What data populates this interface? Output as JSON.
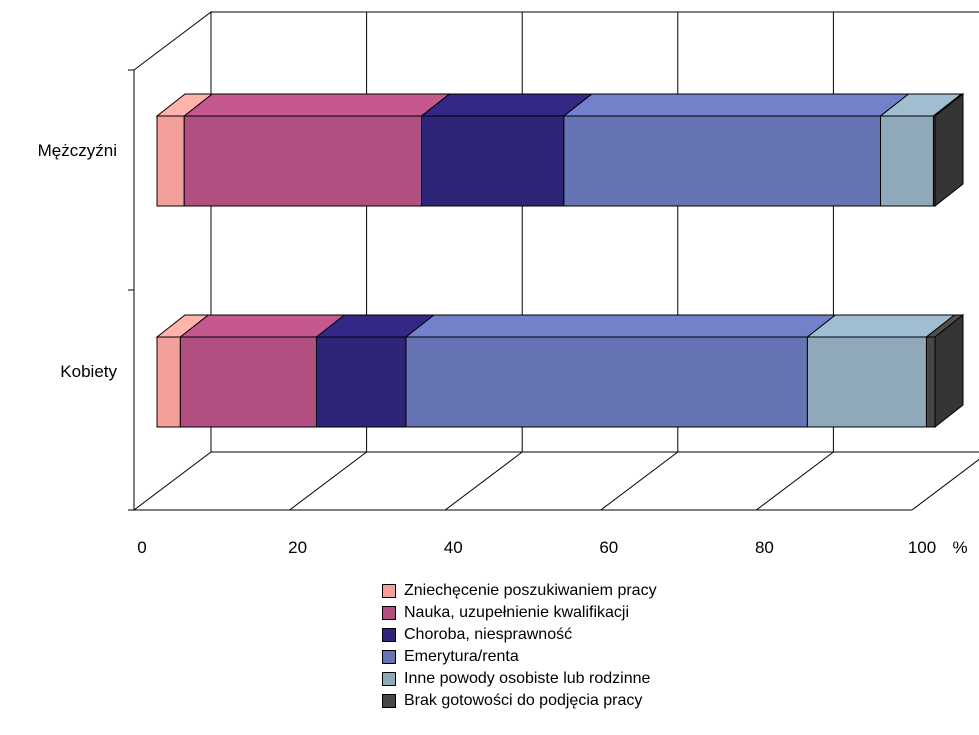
{
  "chart_data": {
    "type": "bar",
    "orientation": "horizontal",
    "stacked": true,
    "three_d": true,
    "unit": "%",
    "xlim": [
      0,
      100
    ],
    "xticks": [
      0,
      20,
      40,
      60,
      80,
      100
    ],
    "grid": true,
    "legend_position": "bottom",
    "categories": [
      "Mężczyźni",
      "Kobiety"
    ],
    "series": [
      {
        "name": "Zniechęcenie poszukiwaniem pracy",
        "color": "#f4a09a",
        "values": [
          3.5,
          3.0
        ]
      },
      {
        "name": "Nauka, uzupełnienie kwalifikacji",
        "color": "#b04f80",
        "values": [
          30.5,
          17.5
        ]
      },
      {
        "name": "Choroba, niesprawność",
        "color": "#2e2478",
        "values": [
          18.3,
          11.5
        ]
      },
      {
        "name": "Emerytura/renta",
        "color": "#6673b4",
        "values": [
          40.7,
          51.6
        ]
      },
      {
        "name": "Inne powody osobiste lub rodzinne",
        "color": "#8fa9bb",
        "values": [
          6.8,
          15.3
        ]
      },
      {
        "name": "Brak gotowości do podjęcia pracy",
        "color": "#474747",
        "values": [
          0.2,
          1.1
        ]
      }
    ]
  }
}
